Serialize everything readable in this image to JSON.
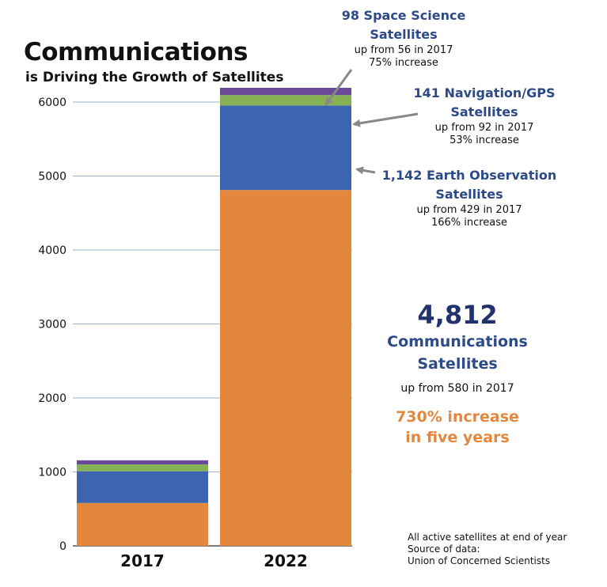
{
  "header": {
    "title": "Communications",
    "subtitle": "is Driving the Growth of Satellites"
  },
  "annotations": {
    "space": {
      "line1": "98 Space Science",
      "line2": "Satellites",
      "line3": "up from 56 in 2017",
      "line4": "75% increase"
    },
    "nav": {
      "line1": "141 Navigation/GPS",
      "line2": "Satellites",
      "line3": "up from 92 in 2017",
      "line4": "53% increase"
    },
    "earth": {
      "line1": "1,142 Earth Observation",
      "line2": "Satellites",
      "line3": "up from 429 in 2017",
      "line4": "166% increase"
    },
    "comm": {
      "value": "4,812",
      "line1": "Communications",
      "line2": "Satellites",
      "line3": "up from 580 in 2017",
      "inc1": "730% increase",
      "inc2": "in five years"
    }
  },
  "notes": {
    "line1": "All active satellites at end of year",
    "line2": "Source of data:",
    "line3": "Union of Concerned Scientists"
  },
  "colors": {
    "communications": "#e3873c",
    "earth_observation": "#3c64b0",
    "navigation_gps": "#86b154",
    "space_science": "#6a4a99",
    "grid": "#9fb3cc",
    "arrow": "#888888"
  },
  "chart_data": {
    "type": "bar",
    "stacked": true,
    "categories": [
      "2017",
      "2022"
    ],
    "series": [
      {
        "key": "communications",
        "values": [
          580,
          4812
        ]
      },
      {
        "key": "earth_observation",
        "values": [
          429,
          1142
        ]
      },
      {
        "key": "navigation_gps",
        "values": [
          92,
          141
        ]
      },
      {
        "key": "space_science",
        "values": [
          56,
          98
        ]
      }
    ],
    "ylim": [
      0,
      6300
    ],
    "yticks": [
      0,
      1000,
      2000,
      3000,
      4000,
      5000,
      6000
    ],
    "grid": true
  }
}
